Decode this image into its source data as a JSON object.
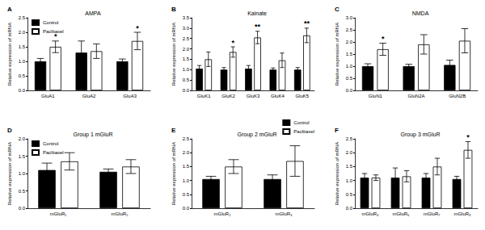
{
  "chart_data": [
    {
      "type": "bar",
      "panel": "A",
      "title": "AMPA",
      "ylabel": "Relative expression of mRNA",
      "categories": [
        "GluA1",
        "GluA2",
        "GluA3"
      ],
      "series": [
        {
          "name": "Control",
          "color": "#000000",
          "values": [
            1.0,
            1.3,
            1.0
          ],
          "errors": [
            0.1,
            0.4,
            0.08
          ]
        },
        {
          "name": "Paclitaxel",
          "color": "#ffffff",
          "values": [
            1.5,
            1.35,
            1.7
          ],
          "errors": [
            0.2,
            0.25,
            0.3
          ]
        }
      ],
      "annotations": [
        {
          "series": "Paclitaxel",
          "category": "GluA1",
          "text": "*"
        },
        {
          "series": "Paclitaxel",
          "category": "GluA3",
          "text": "*"
        }
      ],
      "ylim": [
        0,
        2.5
      ],
      "yticks": [
        {
          "value": 0,
          "label": "0.0"
        },
        0.5,
        {
          "value": 1,
          "label": "1.0"
        },
        1.5,
        {
          "value": 2,
          "label": "2.0"
        },
        2.5
      ],
      "grid": false,
      "legend": "upper left"
    },
    {
      "type": "bar",
      "panel": "B",
      "title": "Kainate",
      "ylabel": "Relative expression of mRNA",
      "categories": [
        "GluK1",
        "GluK2",
        "GluK3",
        "GluK4",
        "GluK5"
      ],
      "series": [
        {
          "name": "Control",
          "color": "#000000",
          "values": [
            1.05,
            1.0,
            1.05,
            1.0,
            1.0
          ],
          "errors": [
            0.15,
            0.1,
            0.15,
            0.08,
            0.1
          ]
        },
        {
          "name": "Paclitaxel",
          "color": "#ffffff",
          "values": [
            1.5,
            1.85,
            2.55,
            1.45,
            2.65
          ],
          "errors": [
            0.35,
            0.25,
            0.3,
            0.35,
            0.35
          ]
        }
      ],
      "annotations": [
        {
          "series": "Paclitaxel",
          "category": "GluK2",
          "text": "*"
        },
        {
          "series": "Paclitaxel",
          "category": "GluK3",
          "text": "**"
        },
        {
          "series": "Paclitaxel",
          "category": "GluK5",
          "text": "**"
        }
      ],
      "ylim": [
        0,
        3.5
      ],
      "yticks": [
        {
          "value": 0,
          "label": "0.0"
        },
        0.5,
        {
          "value": 1,
          "label": "1.0"
        },
        1.5,
        {
          "value": 2,
          "label": "2.0"
        },
        2.5,
        {
          "value": 3,
          "label": "3.0"
        },
        3.5
      ],
      "grid": false
    },
    {
      "type": "bar",
      "panel": "C",
      "title": "NMDA",
      "ylabel": "Relative expression of mRNA",
      "categories": [
        "GluN1",
        "GluN2A",
        "GluN2B"
      ],
      "series": [
        {
          "name": "Control",
          "color": "#000000",
          "values": [
            1.0,
            1.0,
            1.05
          ],
          "errors": [
            0.1,
            0.08,
            0.2
          ]
        },
        {
          "name": "Paclitaxel",
          "color": "#ffffff",
          "values": [
            1.7,
            1.9,
            2.05
          ],
          "errors": [
            0.25,
            0.4,
            0.5
          ]
        }
      ],
      "annotations": [
        {
          "series": "Paclitaxel",
          "category": "GluN1",
          "text": "*"
        }
      ],
      "ylim": [
        0,
        3
      ],
      "yticks": [
        {
          "value": 0,
          "label": "0.0"
        },
        0.5,
        {
          "value": 1,
          "label": "1.0"
        },
        1.5,
        {
          "value": 2,
          "label": "2.0"
        },
        2.5,
        {
          "value": 3,
          "label": "3.0"
        }
      ],
      "grid": false
    },
    {
      "type": "bar",
      "panel": "D",
      "title": "Group 1 mGluR",
      "ylabel": "Relative expression of mRNA",
      "categories": [
        "mGluR₁",
        "mGluR₅"
      ],
      "series": [
        {
          "name": "Control",
          "color": "#000000",
          "values": [
            1.1,
            1.05
          ],
          "errors": [
            0.2,
            0.08
          ]
        },
        {
          "name": "Paclitaxel",
          "color": "#ffffff",
          "values": [
            1.35,
            1.2
          ],
          "errors": [
            0.25,
            0.2
          ]
        }
      ],
      "annotations": [],
      "ylim": [
        0,
        2
      ],
      "yticks": [
        {
          "value": 0,
          "label": "0.0"
        },
        0.5,
        {
          "value": 1,
          "label": "1.0"
        },
        1.5,
        {
          "value": 2,
          "label": "2.0"
        }
      ],
      "grid": false,
      "legend": "upper left"
    },
    {
      "type": "bar",
      "panel": "E",
      "title": "Group 2 mGluR",
      "ylabel": "Relative expression of mRNA",
      "categories": [
        "mGluR₂",
        "mGluR₃"
      ],
      "series": [
        {
          "name": "Control",
          "color": "#000000",
          "values": [
            1.05,
            1.05
          ],
          "errors": [
            0.1,
            0.15
          ]
        },
        {
          "name": "Paclitaxel",
          "color": "#ffffff",
          "values": [
            1.5,
            1.7
          ],
          "errors": [
            0.25,
            0.55
          ]
        }
      ],
      "annotations": [],
      "ylim": [
        0,
        2.5
      ],
      "yticks": [
        {
          "value": 0,
          "label": "0.0"
        },
        0.5,
        {
          "value": 1,
          "label": "1.0"
        },
        1.5,
        {
          "value": 2,
          "label": "2.0"
        },
        2.5
      ],
      "grid": false,
      "legend": "upper right"
    },
    {
      "type": "bar",
      "panel": "F",
      "title": "Group 3 mGluR",
      "ylabel": "Relative expression of mRNA",
      "categories": [
        "mGluR₄",
        "mGluR₆",
        "mGluR₇",
        "mGluR₈"
      ],
      "series": [
        {
          "name": "Control",
          "color": "#000000",
          "values": [
            1.1,
            1.1,
            1.1,
            1.05
          ],
          "errors": [
            0.15,
            0.35,
            0.15,
            0.1
          ]
        },
        {
          "name": "Paclitaxel",
          "color": "#ffffff",
          "values": [
            1.1,
            1.15,
            1.5,
            2.1
          ],
          "errors": [
            0.1,
            0.2,
            0.3,
            0.3
          ]
        }
      ],
      "annotations": [
        {
          "series": "Paclitaxel",
          "category": "mGluR₈",
          "text": "*"
        }
      ],
      "ylim": [
        0,
        2.5
      ],
      "yticks": [
        {
          "value": 0,
          "label": "0.0"
        },
        0.5,
        {
          "value": 1,
          "label": "1.0"
        },
        1.5,
        {
          "value": 2,
          "label": "2.0"
        },
        2.5
      ],
      "grid": false
    }
  ]
}
